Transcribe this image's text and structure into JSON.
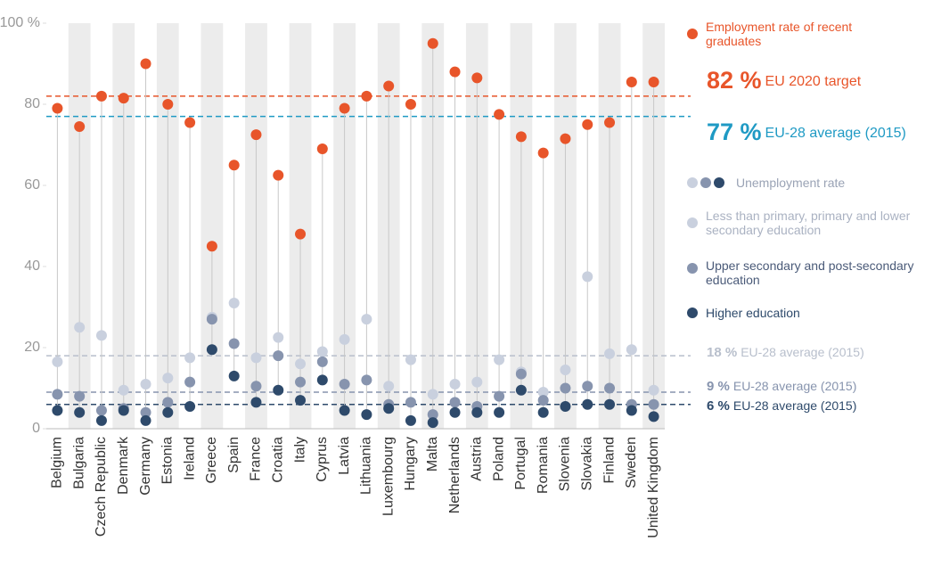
{
  "chart_data": {
    "type": "dot",
    "categories": [
      "Belgium",
      "Bulgaria",
      "Czech Republic",
      "Denmark",
      "Germany",
      "Estonia",
      "Ireland",
      "Greece",
      "Spain",
      "France",
      "Croatia",
      "Italy",
      "Cyprus",
      "Latvia",
      "Lithuania",
      "Luxembourg",
      "Hungary",
      "Malta",
      "Netherlands",
      "Austria",
      "Poland",
      "Portugal",
      "Romania",
      "Slovenia",
      "Slovakia",
      "Finland",
      "Sweden",
      "United Kingdom"
    ],
    "series": [
      {
        "name": "Employment rate of recent graduates",
        "color": "#e8552a",
        "values": [
          79,
          74.5,
          82,
          81.5,
          90,
          80,
          75.5,
          45,
          65,
          72.5,
          62.5,
          48,
          69,
          79,
          82,
          84.5,
          80,
          95,
          88,
          86.5,
          77.5,
          72,
          68,
          71.5,
          75,
          75.5,
          85.5,
          85.5
        ]
      },
      {
        "name": "Less than primary, primary and lower secondary education",
        "color": "#c9d0de",
        "values": [
          16.5,
          25,
          23,
          9.5,
          11,
          12.5,
          17.5,
          27.5,
          31,
          17.5,
          22.5,
          16,
          19,
          22,
          27,
          10.5,
          17,
          8.5,
          11,
          11.5,
          17,
          14,
          9,
          14.5,
          37.5,
          18.5,
          19.5,
          9.5
        ]
      },
      {
        "name": "Upper secondary and post-secondary education",
        "color": "#8794ae",
        "values": [
          8.5,
          8,
          4.5,
          5,
          4,
          6.5,
          11.5,
          27,
          21,
          10.5,
          18,
          11.5,
          16.5,
          11,
          12,
          6,
          6.5,
          3.5,
          6.5,
          5.5,
          8,
          13.5,
          7,
          10,
          10.5,
          10,
          6,
          6
        ]
      },
      {
        "name": "Higher education",
        "color": "#2e4a6b",
        "values": [
          4.5,
          4,
          2,
          4.5,
          2,
          4,
          5.5,
          19.5,
          13,
          6.5,
          9.5,
          7,
          12,
          4.5,
          3.5,
          5,
          2,
          1.5,
          4,
          4,
          4,
          9.5,
          4,
          5.5,
          6,
          6,
          4.5,
          3
        ]
      }
    ],
    "unemployment_heading": "Unemployment rate",
    "reference_lines": [
      {
        "value": 82,
        "label": "82 %",
        "text": "EU 2020 target",
        "color": "#e8552a"
      },
      {
        "value": 77,
        "label": "77 %",
        "text": "EU-28 average (2015)",
        "color": "#1f9ac4"
      },
      {
        "value": 18,
        "label": "18 %",
        "text": "EU-28 average (2015)",
        "color": "#b8bfcc"
      },
      {
        "value": 9,
        "label": "9 %",
        "text": "EU-28 average (2015)",
        "color": "#8794ae"
      },
      {
        "value": 6,
        "label": "6 %",
        "text": "EU-28 average (2015)",
        "color": "#2e4a6b"
      }
    ],
    "ylim": [
      0,
      100
    ],
    "yticks": [
      0,
      20,
      40,
      60,
      80,
      {
        "value": 100,
        "label": "100 %"
      }
    ]
  }
}
